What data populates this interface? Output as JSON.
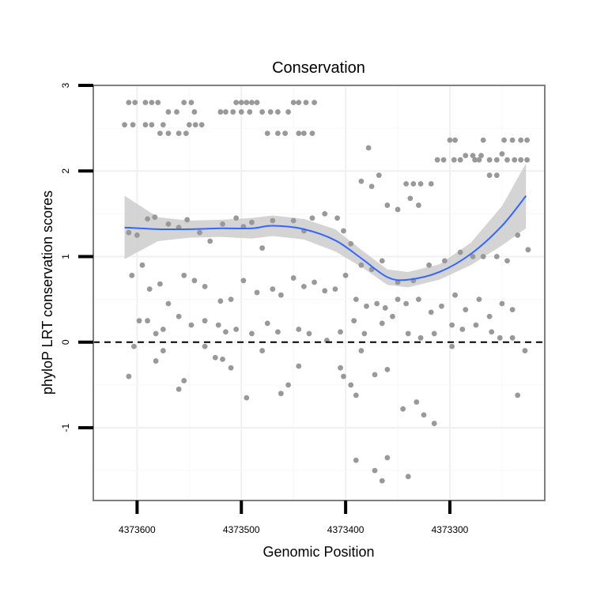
{
  "chart_data": {
    "type": "scatter",
    "title": "Conservation",
    "xlabel": "Genomic Position",
    "ylabel": "phyloP LRT conservation scores",
    "x_reversed": true,
    "xlim": [
      4373642,
      4373209
    ],
    "ylim": [
      -1.85,
      3.0
    ],
    "x_ticks": [
      {
        "value": 4373600,
        "label": "4373600"
      },
      {
        "value": 4373500,
        "label": "4373500"
      },
      {
        "value": 4373400,
        "label": "4373400"
      },
      {
        "value": 4373300,
        "label": "4373300"
      }
    ],
    "y_ticks": [
      {
        "value": -1,
        "label": "-1"
      },
      {
        "value": 0,
        "label": "0"
      },
      {
        "value": 1,
        "label": "1"
      },
      {
        "value": 2,
        "label": "2"
      },
      {
        "value": 3,
        "label": "3"
      }
    ],
    "grid": true,
    "reference_line": {
      "y": 0,
      "style": "dashed"
    },
    "colors": {
      "points": "#999999",
      "smooth_line": "#3366ff",
      "ribbon": "#cccccc",
      "panel_border": "#7f7f7f"
    },
    "smooth": {
      "x": [
        4373612,
        4373580,
        4373550,
        4373520,
        4373490,
        4373470,
        4373440,
        4373410,
        4373385,
        4373360,
        4373340,
        4373310,
        4373280,
        4373250,
        4373227
      ],
      "y": [
        1.34,
        1.32,
        1.32,
        1.33,
        1.33,
        1.36,
        1.32,
        1.19,
        0.98,
        0.76,
        0.73,
        0.82,
        1.03,
        1.36,
        1.71
      ],
      "lower": [
        0.97,
        1.18,
        1.22,
        1.23,
        1.21,
        1.24,
        1.2,
        1.06,
        0.88,
        0.67,
        0.64,
        0.73,
        0.9,
        1.13,
        1.33
      ],
      "upper": [
        1.71,
        1.46,
        1.42,
        1.43,
        1.45,
        1.48,
        1.44,
        1.32,
        1.08,
        0.85,
        0.82,
        0.91,
        1.16,
        1.59,
        2.09
      ]
    },
    "points": [
      [
        4373608,
        2.8
      ],
      [
        4373602,
        2.8
      ],
      [
        4373592,
        2.8
      ],
      [
        4373586,
        2.8
      ],
      [
        4373580,
        2.8
      ],
      [
        4373555,
        2.8
      ],
      [
        4373548,
        2.8
      ],
      [
        4373505,
        2.8
      ],
      [
        4373500,
        2.8
      ],
      [
        4373495,
        2.8
      ],
      [
        4373490,
        2.8
      ],
      [
        4373485,
        2.8
      ],
      [
        4373450,
        2.8
      ],
      [
        4373445,
        2.8
      ],
      [
        4373438,
        2.8
      ],
      [
        4373430,
        2.8
      ],
      [
        4373612,
        2.54
      ],
      [
        4373604,
        2.54
      ],
      [
        4373592,
        2.54
      ],
      [
        4373586,
        2.54
      ],
      [
        4373575,
        2.54
      ],
      [
        4373550,
        2.54
      ],
      [
        4373544,
        2.54
      ],
      [
        4373538,
        2.54
      ],
      [
        4373570,
        2.69
      ],
      [
        4373562,
        2.69
      ],
      [
        4373545,
        2.69
      ],
      [
        4373520,
        2.69
      ],
      [
        4373515,
        2.69
      ],
      [
        4373508,
        2.69
      ],
      [
        4373500,
        2.69
      ],
      [
        4373492,
        2.69
      ],
      [
        4373480,
        2.69
      ],
      [
        4373472,
        2.69
      ],
      [
        4373465,
        2.69
      ],
      [
        4373455,
        2.69
      ],
      [
        4373578,
        2.44
      ],
      [
        4373570,
        2.44
      ],
      [
        4373560,
        2.44
      ],
      [
        4373553,
        2.44
      ],
      [
        4373475,
        2.44
      ],
      [
        4373465,
        2.44
      ],
      [
        4373458,
        2.44
      ],
      [
        4373445,
        2.44
      ],
      [
        4373440,
        2.44
      ],
      [
        4373432,
        2.44
      ],
      [
        4373378,
        2.27
      ],
      [
        4373368,
        1.95
      ],
      [
        4373385,
        1.88
      ],
      [
        4373375,
        1.82
      ],
      [
        4373360,
        1.6
      ],
      [
        4373350,
        1.55
      ],
      [
        4373342,
        1.85
      ],
      [
        4373335,
        1.85
      ],
      [
        4373328,
        1.85
      ],
      [
        4373318,
        1.85
      ],
      [
        4373338,
        1.68
      ],
      [
        4373330,
        1.6
      ],
      [
        4373312,
        2.13
      ],
      [
        4373306,
        2.13
      ],
      [
        4373296,
        2.13
      ],
      [
        4373290,
        2.13
      ],
      [
        4373276,
        2.13
      ],
      [
        4373272,
        2.13
      ],
      [
        4373262,
        2.13
      ],
      [
        4373255,
        2.13
      ],
      [
        4373245,
        2.13
      ],
      [
        4373238,
        2.13
      ],
      [
        4373232,
        2.13
      ],
      [
        4373226,
        2.13
      ],
      [
        4373300,
        2.36
      ],
      [
        4373295,
        2.36
      ],
      [
        4373268,
        2.36
      ],
      [
        4373248,
        2.36
      ],
      [
        4373240,
        2.36
      ],
      [
        4373232,
        2.36
      ],
      [
        4373226,
        2.36
      ],
      [
        4373285,
        2.18
      ],
      [
        4373278,
        2.18
      ],
      [
        4373270,
        2.18
      ],
      [
        4373250,
        2.2
      ],
      [
        4373255,
        1.95
      ],
      [
        4373262,
        1.95
      ],
      [
        4373608,
        1.28
      ],
      [
        4373600,
        1.25
      ],
      [
        4373590,
        1.44
      ],
      [
        4373583,
        1.46
      ],
      [
        4373570,
        1.38
      ],
      [
        4373560,
        1.34
      ],
      [
        4373552,
        1.43
      ],
      [
        4373540,
        1.28
      ],
      [
        4373530,
        1.18
      ],
      [
        4373518,
        1.38
      ],
      [
        4373505,
        1.45
      ],
      [
        4373498,
        1.35
      ],
      [
        4373490,
        1.4
      ],
      [
        4373480,
        1.1
      ],
      [
        4373470,
        1.42
      ],
      [
        4373450,
        1.42
      ],
      [
        4373440,
        1.3
      ],
      [
        4373432,
        1.45
      ],
      [
        4373420,
        1.5
      ],
      [
        4373408,
        1.45
      ],
      [
        4373402,
        1.3
      ],
      [
        4373395,
        1.15
      ],
      [
        4373385,
        0.9
      ],
      [
        4373375,
        0.85
      ],
      [
        4373365,
        0.95
      ],
      [
        4373350,
        0.7
      ],
      [
        4373335,
        0.72
      ],
      [
        4373320,
        0.9
      ],
      [
        4373305,
        0.95
      ],
      [
        4373290,
        1.05
      ],
      [
        4373278,
        1.0
      ],
      [
        4373268,
        1.0
      ],
      [
        4373255,
        1.0
      ],
      [
        4373245,
        0.95
      ],
      [
        4373235,
        1.25
      ],
      [
        4373225,
        1.08
      ],
      [
        4373605,
        0.78
      ],
      [
        4373595,
        0.9
      ],
      [
        4373588,
        0.62
      ],
      [
        4373578,
        0.68
      ],
      [
        4373570,
        0.45
      ],
      [
        4373555,
        0.78
      ],
      [
        4373545,
        0.72
      ],
      [
        4373535,
        0.65
      ],
      [
        4373520,
        0.48
      ],
      [
        4373510,
        0.5
      ],
      [
        4373498,
        0.72
      ],
      [
        4373485,
        0.58
      ],
      [
        4373470,
        0.62
      ],
      [
        4373462,
        0.55
      ],
      [
        4373450,
        0.75
      ],
      [
        4373440,
        0.65
      ],
      [
        4373430,
        0.7
      ],
      [
        4373420,
        0.6
      ],
      [
        4373410,
        0.62
      ],
      [
        4373400,
        0.78
      ],
      [
        4373390,
        0.5
      ],
      [
        4373380,
        0.42
      ],
      [
        4373370,
        0.45
      ],
      [
        4373362,
        0.4
      ],
      [
        4373350,
        0.5
      ],
      [
        4373342,
        0.45
      ],
      [
        4373330,
        0.5
      ],
      [
        4373318,
        0.35
      ],
      [
        4373308,
        0.42
      ],
      [
        4373295,
        0.55
      ],
      [
        4373285,
        0.38
      ],
      [
        4373272,
        0.5
      ],
      [
        4373262,
        0.3
      ],
      [
        4373250,
        0.45
      ],
      [
        4373240,
        0.38
      ],
      [
        4373598,
        0.25
      ],
      [
        4373590,
        0.25
      ],
      [
        4373582,
        0.1
      ],
      [
        4373575,
        0.15
      ],
      [
        4373560,
        0.3
      ],
      [
        4373548,
        0.2
      ],
      [
        4373535,
        0.25
      ],
      [
        4373522,
        0.2
      ],
      [
        4373515,
        0.12
      ],
      [
        4373505,
        0.15
      ],
      [
        4373490,
        0.1
      ],
      [
        4373475,
        0.22
      ],
      [
        4373465,
        0.12
      ],
      [
        4373445,
        0.15
      ],
      [
        4373435,
        0.1
      ],
      [
        4373418,
        0.02
      ],
      [
        4373405,
        0.12
      ],
      [
        4373392,
        0.25
      ],
      [
        4373382,
        0.1
      ],
      [
        4373365,
        0.22
      ],
      [
        4373355,
        0.3
      ],
      [
        4373340,
        0.1
      ],
      [
        4373328,
        0.05
      ],
      [
        4373315,
        0.1
      ],
      [
        4373298,
        0.2
      ],
      [
        4373288,
        0.15
      ],
      [
        4373275,
        0.2
      ],
      [
        4373260,
        0.12
      ],
      [
        4373252,
        0.05
      ],
      [
        4373240,
        0.05
      ],
      [
        4373608,
        -0.4
      ],
      [
        4373603,
        -0.05
      ],
      [
        4373582,
        -0.22
      ],
      [
        4373575,
        -0.1
      ],
      [
        4373560,
        -0.55
      ],
      [
        4373555,
        -0.45
      ],
      [
        4373535,
        -0.05
      ],
      [
        4373525,
        -0.18
      ],
      [
        4373518,
        -0.2
      ],
      [
        4373510,
        -0.3
      ],
      [
        4373495,
        -0.65
      ],
      [
        4373480,
        -0.1
      ],
      [
        4373462,
        -0.6
      ],
      [
        4373455,
        -0.5
      ],
      [
        4373445,
        -0.28
      ],
      [
        4373405,
        -0.3
      ],
      [
        4373402,
        -0.4
      ],
      [
        4373395,
        -0.5
      ],
      [
        4373390,
        -0.62
      ],
      [
        4373385,
        -0.1
      ],
      [
        4373372,
        -0.38
      ],
      [
        4373360,
        -0.32
      ],
      [
        4373345,
        -0.78
      ],
      [
        4373332,
        -0.7
      ],
      [
        4373325,
        -0.85
      ],
      [
        4373315,
        -0.95
      ],
      [
        4373298,
        -0.05
      ],
      [
        4373235,
        -0.62
      ],
      [
        4373228,
        -0.1
      ],
      [
        4373390,
        -1.38
      ],
      [
        4373372,
        -1.5
      ],
      [
        4373365,
        -1.62
      ],
      [
        4373360,
        -1.35
      ],
      [
        4373340,
        -1.57
      ]
    ]
  }
}
